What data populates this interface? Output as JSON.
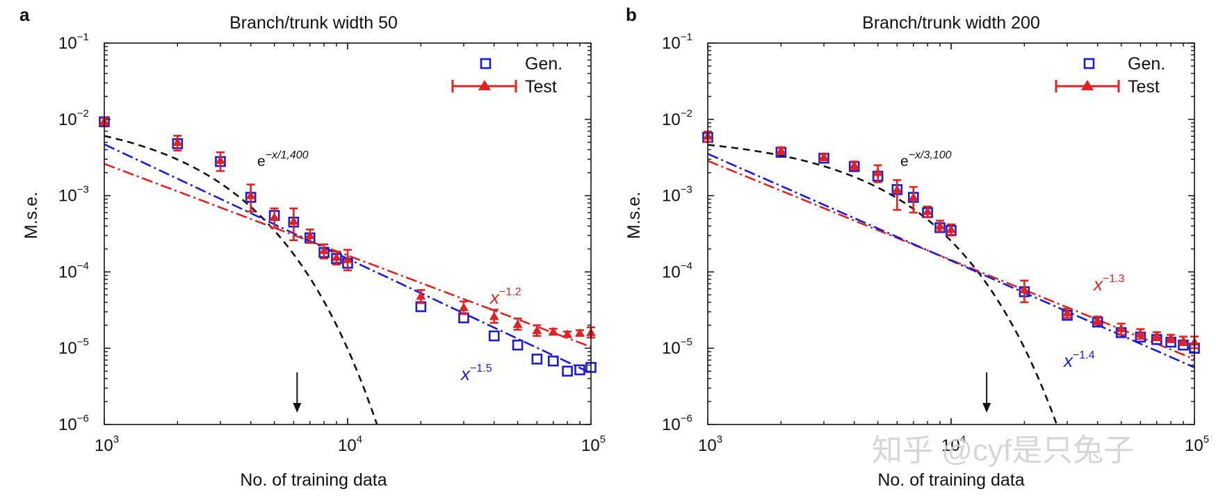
{
  "watermark": "知乎 @cyf是只兔子",
  "colors": {
    "gen": "#1a1ad8",
    "test": "#e02222",
    "exp": "#111111",
    "axis": "#111111"
  },
  "chart_data": [
    {
      "panel": "a",
      "type": "scatter",
      "title": "Branch/trunk width 50",
      "xlabel": "No. of training data",
      "ylabel": "M.s.e.",
      "xscale": "log",
      "yscale": "log",
      "xlim": [
        1000,
        100000
      ],
      "ylim": [
        1e-06,
        0.1
      ],
      "xticks": [
        {
          "base": "10",
          "exp": "3"
        },
        {
          "base": "10",
          "exp": "4"
        },
        {
          "base": "10",
          "exp": "5"
        }
      ],
      "yticks": [
        {
          "base": "10",
          "exp": "−6"
        },
        {
          "base": "10",
          "exp": "−5"
        },
        {
          "base": "10",
          "exp": "−4"
        },
        {
          "base": "10",
          "exp": "−3"
        },
        {
          "base": "10",
          "exp": "−2"
        },
        {
          "base": "10",
          "exp": "−1"
        }
      ],
      "legend": {
        "position": "top-right",
        "entries": [
          {
            "label": "Gen.",
            "marker": "open-square"
          },
          {
            "label": "Test",
            "marker": "triangle-errorbar"
          }
        ]
      },
      "series": [
        {
          "name": "Gen.",
          "x": [
            1000,
            2000,
            3000,
            4000,
            5000,
            6000,
            7000,
            8000,
            9000,
            10000,
            20000,
            30000,
            40000,
            50000,
            60000,
            70000,
            80000,
            90000,
            100000
          ],
          "y": [
            0.0093,
            0.0048,
            0.0028,
            0.00095,
            0.00055,
            0.00045,
            0.00028,
            0.00018,
            0.00015,
            0.00013,
            3.5e-05,
            2.5e-05,
            1.45e-05,
            1.1e-05,
            7.2e-06,
            6.8e-06,
            5e-06,
            5.2e-06,
            5.6e-06
          ]
        },
        {
          "name": "Test",
          "x": [
            1000,
            2000,
            3000,
            4000,
            5000,
            6000,
            7000,
            8000,
            9000,
            10000,
            20000,
            30000,
            40000,
            50000,
            60000,
            70000,
            80000,
            90000,
            100000
          ],
          "y": [
            0.0094,
            0.005,
            0.0029,
            0.001,
            0.00052,
            0.00046,
            0.0003,
            0.00019,
            0.000155,
            0.000145,
            4.8e-05,
            3.4e-05,
            2.6e-05,
            2.05e-05,
            1.7e-05,
            1.65e-05,
            1.52e-05,
            1.58e-05,
            1.6e-05
          ],
          "err_low": [
            0.0084,
            0.0039,
            0.0021,
            0.00062,
            0.00038,
            0.00026,
            0.00024,
            0.00015,
            0.000125,
            0.000105,
            3.9e-05,
            2.8e-05,
            2.15e-05,
            1.75e-05,
            1.45e-05,
            1.5e-05,
            1.4e-05,
            1.45e-05,
            1.38e-05
          ],
          "err_high": [
            0.0104,
            0.0061,
            0.0037,
            0.0014,
            0.00068,
            0.00068,
            0.00036,
            0.00023,
            0.000185,
            0.000195,
            5.8e-05,
            4.1e-05,
            3.2e-05,
            2.45e-05,
            2e-05,
            1.8e-05,
            1.65e-05,
            1.72e-05,
            1.88e-05
          ]
        }
      ],
      "fits": [
        {
          "label": "e",
          "exponent": "−x/1,400",
          "kind": "exp",
          "amp": 0.0124,
          "scale": 1400,
          "color": "exp"
        },
        {
          "label": "x",
          "exponent": "−1.2",
          "kind": "power",
          "coef": 10.4,
          "power": -1.2,
          "color": "test"
        },
        {
          "label": "x",
          "exponent": "−1.5",
          "kind": "power",
          "coef": 149,
          "power": -1.5,
          "color": "gen"
        }
      ],
      "arrow_x": 6200
    },
    {
      "panel": "b",
      "type": "scatter",
      "title": "Branch/trunk width 200",
      "xlabel": "No. of training data",
      "ylabel": "M.s.e.",
      "xscale": "log",
      "yscale": "log",
      "xlim": [
        1000,
        100000
      ],
      "ylim": [
        1e-06,
        0.1
      ],
      "xticks": [
        {
          "base": "10",
          "exp": "3"
        },
        {
          "base": "10",
          "exp": "4"
        },
        {
          "base": "10",
          "exp": "5"
        }
      ],
      "yticks": [
        {
          "base": "10",
          "exp": "−6"
        },
        {
          "base": "10",
          "exp": "−5"
        },
        {
          "base": "10",
          "exp": "−4"
        },
        {
          "base": "10",
          "exp": "−3"
        },
        {
          "base": "10",
          "exp": "−2"
        },
        {
          "base": "10",
          "exp": "−1"
        }
      ],
      "legend": {
        "position": "top-right",
        "entries": [
          {
            "label": "Gen.",
            "marker": "open-square"
          },
          {
            "label": "Test",
            "marker": "triangle-errorbar"
          }
        ]
      },
      "series": [
        {
          "name": "Gen.",
          "x": [
            1000,
            2000,
            3000,
            4000,
            5000,
            6000,
            7000,
            8000,
            9000,
            10000,
            20000,
            30000,
            40000,
            50000,
            60000,
            70000,
            80000,
            90000,
            100000
          ],
          "y": [
            0.0058,
            0.0037,
            0.0031,
            0.0024,
            0.0018,
            0.0012,
            0.00095,
            0.0006,
            0.00038,
            0.00035,
            5.5e-05,
            2.7e-05,
            2.2e-05,
            1.6e-05,
            1.4e-05,
            1.3e-05,
            1.2e-05,
            1.1e-05,
            1e-05
          ]
        },
        {
          "name": "Test",
          "x": [
            1000,
            2000,
            3000,
            4000,
            5000,
            6000,
            7000,
            8000,
            9000,
            10000,
            20000,
            30000,
            40000,
            50000,
            60000,
            70000,
            80000,
            90000,
            100000
          ],
          "y": [
            0.006,
            0.0039,
            0.0032,
            0.0025,
            0.002,
            0.0012,
            0.00095,
            0.00062,
            0.0004,
            0.00036,
            5.8e-05,
            2.9e-05,
            2.3e-05,
            1.8e-05,
            1.55e-05,
            1.45e-05,
            1.35e-05,
            1.25e-05,
            1.2e-05
          ],
          "err_low": [
            0.0051,
            0.0035,
            0.0029,
            0.0022,
            0.0015,
            0.00065,
            0.0006,
            0.00052,
            0.00034,
            0.0003,
            4e-05,
            2.5e-05,
            2.05e-05,
            1.5e-05,
            1.33e-05,
            1.27e-05,
            1.2e-05,
            1.1e-05,
            1e-05
          ],
          "err_high": [
            0.0069,
            0.0043,
            0.0035,
            0.0028,
            0.0025,
            0.0016,
            0.0013,
            0.00072,
            0.00047,
            0.00042,
            7.7e-05,
            3.3e-05,
            2.6e-05,
            2.1e-05,
            1.78e-05,
            1.62e-05,
            1.5e-05,
            1.42e-05,
            1.42e-05
          ]
        }
      ],
      "fits": [
        {
          "label": "e",
          "exponent": "−x/3,100",
          "kind": "exp",
          "amp": 0.0064,
          "scale": 3100,
          "color": "exp"
        },
        {
          "label": "x",
          "exponent": "−1.3",
          "kind": "power",
          "coef": 22.7,
          "power": -1.3,
          "color": "test"
        },
        {
          "label": "x",
          "exponent": "−1.4",
          "kind": "power",
          "coef": 56,
          "power": -1.4,
          "color": "gen"
        }
      ],
      "arrow_x": 14000
    }
  ]
}
